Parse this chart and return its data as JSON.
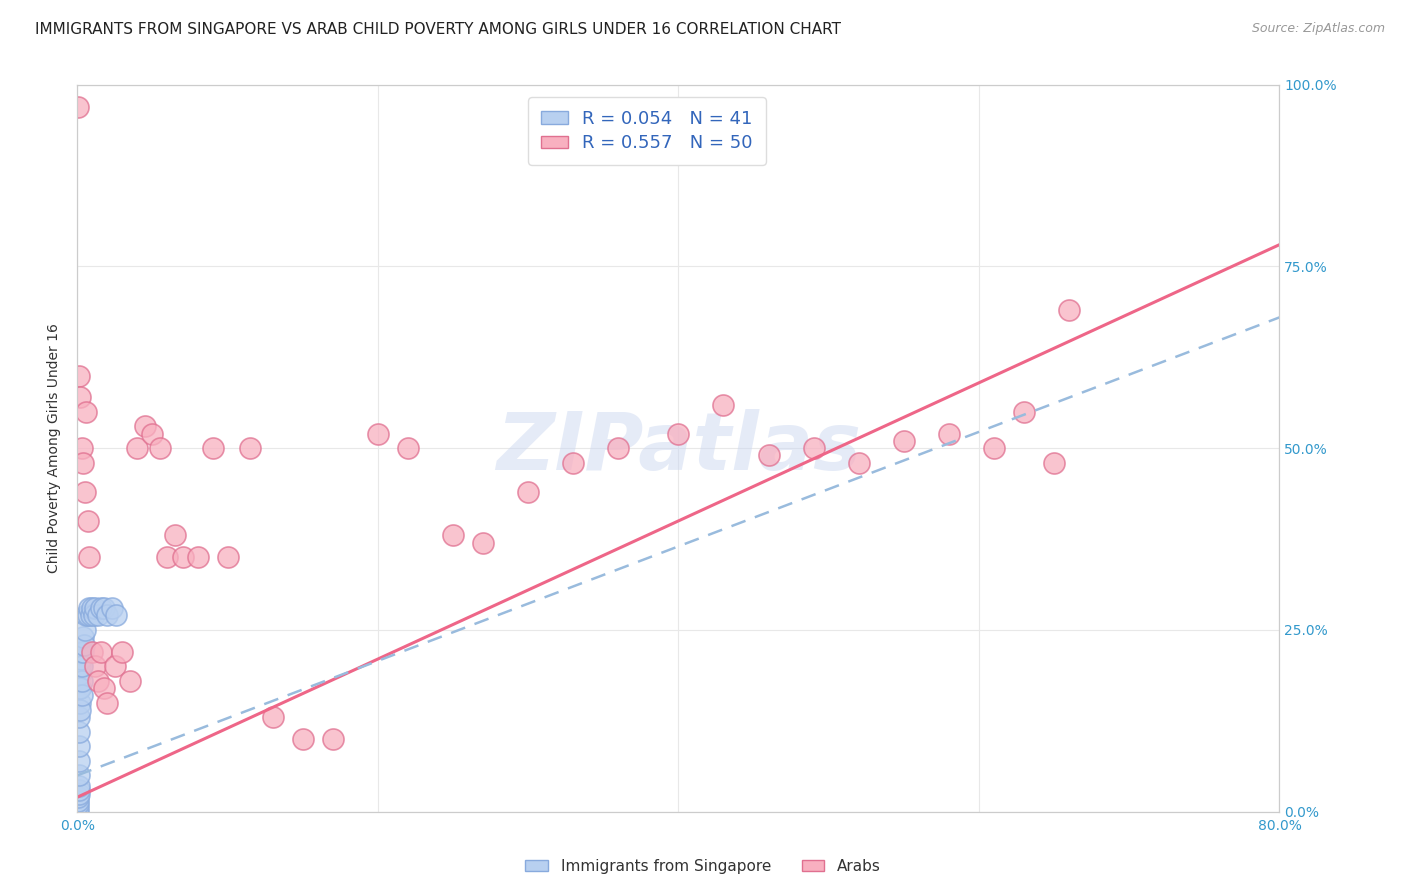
{
  "title": "IMMIGRANTS FROM SINGAPORE VS ARAB CHILD POVERTY AMONG GIRLS UNDER 16 CORRELATION CHART",
  "source": "Source: ZipAtlas.com",
  "ylabel": "Child Poverty Among Girls Under 16",
  "watermark": "ZIPatlas",
  "xlim": [
    0.0,
    0.8
  ],
  "ylim": [
    0.0,
    1.0
  ],
  "singapore_R": 0.054,
  "singapore_N": 41,
  "arabs_R": 0.557,
  "arabs_N": 50,
  "singapore_color": "#b8d0f0",
  "singapore_edge": "#88aadd",
  "arabs_color": "#f8b0c0",
  "arabs_edge": "#e07090",
  "singapore_line_color": "#99bbdd",
  "arabs_line_color": "#ee6688",
  "background_color": "#ffffff",
  "grid_color": "#e8e8e8",
  "title_fontsize": 11,
  "axis_label_fontsize": 10,
  "tick_fontsize": 10,
  "legend_fontsize": 13,
  "sg_x": [
    0.0003,
    0.0004,
    0.0005,
    0.0006,
    0.0007,
    0.0008,
    0.0009,
    0.001,
    0.001,
    0.001,
    0.0012,
    0.0013,
    0.0014,
    0.0015,
    0.0016,
    0.0018,
    0.002,
    0.002,
    0.002,
    0.0022,
    0.0025,
    0.003,
    0.003,
    0.0033,
    0.0036,
    0.004,
    0.0045,
    0.005,
    0.006,
    0.007,
    0.008,
    0.009,
    0.01,
    0.011,
    0.012,
    0.014,
    0.016,
    0.018,
    0.02,
    0.023,
    0.026
  ],
  "sg_y": [
    0.0,
    0.005,
    0.01,
    0.015,
    0.02,
    0.025,
    0.03,
    0.035,
    0.05,
    0.07,
    0.09,
    0.11,
    0.13,
    0.15,
    0.17,
    0.19,
    0.14,
    0.17,
    0.2,
    0.21,
    0.22,
    0.16,
    0.18,
    0.2,
    0.22,
    0.24,
    0.23,
    0.25,
    0.27,
    0.27,
    0.28,
    0.27,
    0.28,
    0.27,
    0.28,
    0.27,
    0.28,
    0.28,
    0.27,
    0.28,
    0.27
  ],
  "ar_x": [
    0.0005,
    0.001,
    0.002,
    0.003,
    0.004,
    0.005,
    0.006,
    0.007,
    0.008,
    0.01,
    0.012,
    0.014,
    0.016,
    0.018,
    0.02,
    0.025,
    0.03,
    0.035,
    0.04,
    0.045,
    0.05,
    0.055,
    0.06,
    0.065,
    0.07,
    0.08,
    0.09,
    0.1,
    0.115,
    0.13,
    0.15,
    0.17,
    0.2,
    0.22,
    0.25,
    0.27,
    0.3,
    0.33,
    0.36,
    0.4,
    0.43,
    0.46,
    0.49,
    0.52,
    0.55,
    0.58,
    0.61,
    0.63,
    0.65,
    0.66
  ],
  "ar_y": [
    0.97,
    0.6,
    0.57,
    0.5,
    0.48,
    0.44,
    0.55,
    0.4,
    0.35,
    0.22,
    0.2,
    0.18,
    0.22,
    0.17,
    0.15,
    0.2,
    0.22,
    0.18,
    0.5,
    0.53,
    0.52,
    0.5,
    0.35,
    0.38,
    0.35,
    0.35,
    0.5,
    0.35,
    0.5,
    0.13,
    0.1,
    0.1,
    0.52,
    0.5,
    0.38,
    0.37,
    0.44,
    0.48,
    0.5,
    0.52,
    0.56,
    0.49,
    0.5,
    0.48,
    0.51,
    0.52,
    0.5,
    0.55,
    0.48,
    0.69
  ]
}
